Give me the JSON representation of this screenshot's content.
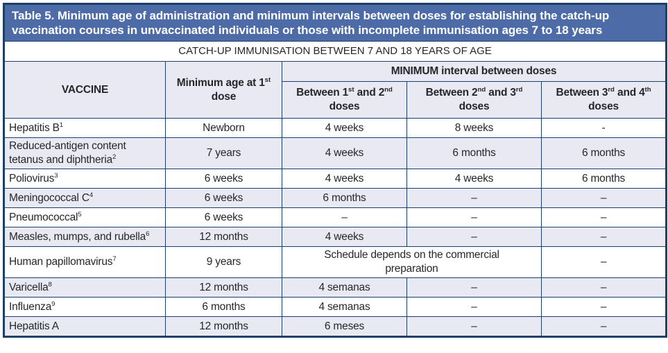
{
  "colors": {
    "title-bar-bg": "#4d6ba7",
    "border": "#1c4067",
    "alt-row": "#e8e9f3",
    "text": "#26262b"
  },
  "title": "Table 5. Minimum age of administration and minimum intervals between doses for establishing the catch-up vaccination courses in unvaccinated individuals or those with incomplete immunisation ages 7 to 18 years",
  "subtitle": "CATCH-UP IMMUNISATION BETWEEN 7 AND 18 YEARS OF AGE",
  "headers": {
    "vaccine": "VACCINE",
    "min_age": "Minimum age at 1{st} dose",
    "interval_group": "MINIMUM interval between doses",
    "between_1_2": "Between 1{st} and 2{nd} doses",
    "between_2_3": "Between 2{nd} and 3{rd} doses",
    "between_3_4": "Between 3{rd} and 4{th} doses"
  },
  "rows": [
    {
      "vaccine": "Hepatitis B{1}",
      "cells": [
        "Newborn",
        "4 weeks",
        "8 weeks",
        "-"
      ]
    },
    {
      "vaccine": "Reduced-antigen content tetanus and diphtheria{2}",
      "cells": [
        "7 years",
        "4 weeks",
        "6 months",
        "6 months"
      ]
    },
    {
      "vaccine": "Poliovirus{3}",
      "cells": [
        "6 weeks",
        "4 weeks",
        "4 weeks",
        "6 months"
      ]
    },
    {
      "vaccine": "Meningococcal C{4}",
      "cells": [
        "6 weeks",
        "6 months",
        "–",
        "–"
      ]
    },
    {
      "vaccine": "Pneumococcal{5}",
      "cells": [
        "6 weeks",
        "–",
        "–",
        "–"
      ]
    },
    {
      "vaccine": "Measles, mumps, and rubella{6}",
      "cells": [
        "12 months",
        "4 weeks",
        "–",
        "–"
      ]
    },
    {
      "vaccine": "Human papillomavirus{7}",
      "cells": [
        "9 years",
        {
          "text": "Schedule depends on the commercial preparation",
          "colspan": 2
        },
        "–"
      ]
    },
    {
      "vaccine": "Varicella{8}",
      "cells": [
        "12 months",
        "4 semanas",
        "–",
        "–"
      ]
    },
    {
      "vaccine": "Influenza{9}",
      "cells": [
        "6 months",
        "4 semanas",
        "–",
        "–"
      ]
    },
    {
      "vaccine": "Hepatitis A",
      "cells": [
        "12 months",
        "6 meses",
        "–",
        "–"
      ]
    }
  ]
}
